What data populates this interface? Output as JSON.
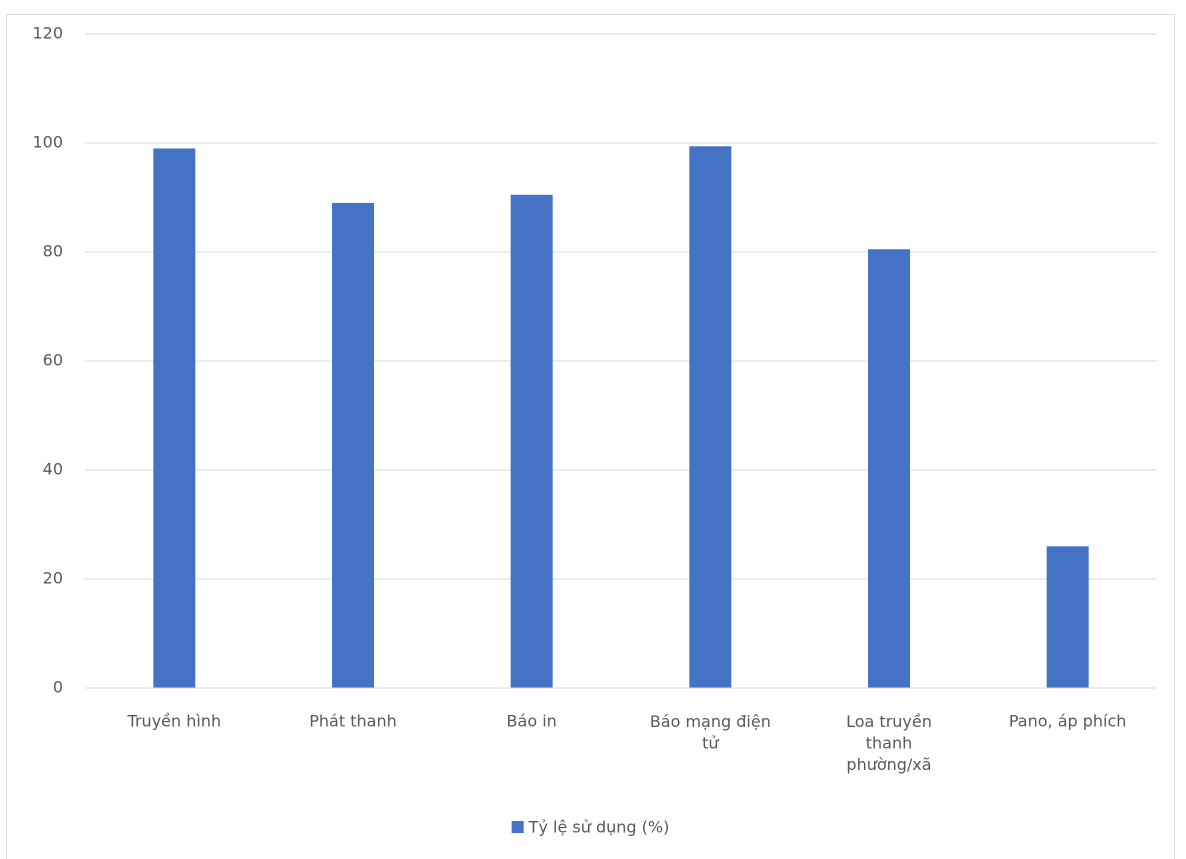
{
  "chart_data": {
    "type": "bar",
    "categories": [
      "Truyền hình",
      "Phát thanh",
      "Báo in",
      "Báo mạng điện tử",
      "Loa truyền thanh phường/xã",
      "Pano, áp phích"
    ],
    "series": [
      {
        "name": "Tỷ lệ sử dụng (%)",
        "color": "#4472c4",
        "values": [
          99,
          89,
          90.5,
          99.4,
          80.5,
          26
        ]
      }
    ],
    "ylim": [
      0,
      120
    ],
    "yticks": [
      0,
      20,
      40,
      60,
      80,
      100,
      120
    ],
    "grid": true,
    "legend": "bottom"
  }
}
